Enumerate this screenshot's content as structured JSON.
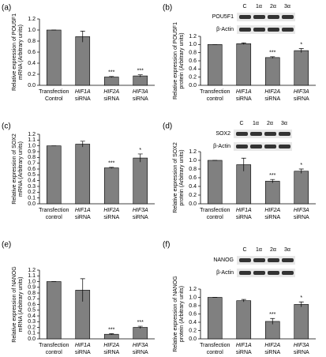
{
  "chart_data": [
    {
      "type": "bar",
      "label": "(a)",
      "y_label": [
        "Relative expression of POU5F1",
        "mRNA (Arbitrary units)"
      ],
      "categories": [
        [
          "Transfection",
          "Control"
        ],
        [
          "HIF1A",
          "siRNA"
        ],
        [
          "HIF2A",
          "siRNA"
        ],
        [
          "HIF3A",
          "siRNA"
        ]
      ],
      "values": [
        1.0,
        0.88,
        0.15,
        0.17
      ],
      "errors": [
        0,
        0.1,
        0.01,
        0.02
      ],
      "significance": [
        null,
        null,
        "***",
        "***"
      ],
      "color": "#808080",
      "ylim": [
        0,
        1.2
      ],
      "yticks": [
        {
          "value": 0,
          "label": "0.0"
        },
        0.2,
        0.4,
        0.6,
        0.8,
        {
          "value": 1,
          "label": "1.0"
        },
        1.2
      ]
    },
    {
      "type": "bar",
      "label": "(b)",
      "y_label": [
        "Relative expression of POU5F1",
        "protein (Arbitrary units)"
      ],
      "categories": [
        [
          "Transfection",
          "control"
        ],
        [
          "HIF1A",
          "siRNA"
        ],
        [
          "HIF2A",
          "siRNA"
        ],
        [
          "HIF3A",
          "siRNA"
        ]
      ],
      "values": [
        1.0,
        1.02,
        0.68,
        0.85
      ],
      "errors": [
        0,
        0.02,
        0.02,
        0.05
      ],
      "significance": [
        null,
        null,
        "***",
        "*"
      ],
      "color": "#808080",
      "ylim": [
        0,
        1.2
      ],
      "yticks": [
        {
          "value": 0,
          "label": "0.0"
        },
        0.2,
        0.4,
        0.6,
        0.8,
        {
          "value": 1,
          "label": "1.0"
        },
        1.2
      ],
      "blot": {
        "lanes": [
          "C",
          "1α",
          "2α",
          "3α"
        ],
        "bands": [
          "POU5F1",
          "β-Actin"
        ]
      }
    },
    {
      "type": "bar",
      "label": "(c)",
      "y_label": [
        "Relative expression of SOX2",
        "mRNA (Arbitrary units)"
      ],
      "categories": [
        [
          "Transfection",
          "control"
        ],
        [
          "HIF1A",
          "siRNA"
        ],
        [
          "HIF2A",
          "siRNA"
        ],
        [
          "HIF3A",
          "siRNA"
        ]
      ],
      "values": [
        1.0,
        1.03,
        0.62,
        0.79
      ],
      "errors": [
        0,
        0.05,
        0.01,
        0.07
      ],
      "significance": [
        null,
        null,
        "***",
        "*"
      ],
      "color": "#808080",
      "ylim": [
        0,
        1.2
      ],
      "yticks": [
        {
          "value": 0,
          "label": "0.0"
        },
        0.1,
        0.2,
        0.3,
        0.4,
        0.5,
        0.6,
        0.7,
        0.8,
        0.9,
        {
          "value": 1,
          "label": "1.0"
        },
        1.1,
        1.2
      ]
    },
    {
      "type": "bar",
      "label": "(d)",
      "y_label": [
        "Relative expression of SOX2",
        "protein (Arbitrary units)"
      ],
      "categories": [
        [
          "Transfection",
          "control"
        ],
        [
          "HIF1A",
          "siRNA"
        ],
        [
          "HIF2A",
          "siRNA"
        ],
        [
          "HIF3A",
          "siRNA"
        ]
      ],
      "values": [
        1.0,
        0.9,
        0.52,
        0.75
      ],
      "errors": [
        0,
        0.15,
        0.04,
        0.05
      ],
      "significance": [
        null,
        null,
        "***",
        "*"
      ],
      "color": "#808080",
      "ylim": [
        0,
        1.2
      ],
      "yticks": [
        {
          "value": 0,
          "label": "0.0"
        },
        0.2,
        0.4,
        0.6,
        0.8,
        {
          "value": 1,
          "label": "1.0"
        },
        1.2
      ],
      "blot": {
        "lanes": [
          "C",
          "1α",
          "2α",
          "3α"
        ],
        "bands": [
          "SOX2",
          "β-Actin"
        ]
      }
    },
    {
      "type": "bar",
      "label": "(e)",
      "y_label": [
        "Relative expression of NANOG",
        "mRNA (Arbitrary units)"
      ],
      "categories": [
        [
          "Transfection",
          "control"
        ],
        [
          "HIF1A",
          "siRNA"
        ],
        [
          "HIF2A",
          "siRNA"
        ],
        [
          "HIF3A",
          "siRNA"
        ]
      ],
      "values": [
        1.0,
        0.85,
        0.08,
        0.2
      ],
      "errors": [
        0,
        0.2,
        0.01,
        0.02
      ],
      "significance": [
        null,
        null,
        "***",
        "***"
      ],
      "color": "#808080",
      "ylim": [
        0,
        1.2
      ],
      "yticks": [
        {
          "value": 0,
          "label": "0.0"
        },
        0.1,
        0.2,
        0.3,
        0.4,
        0.5,
        0.6,
        0.7,
        0.8,
        0.9,
        {
          "value": 1,
          "label": "1.0"
        },
        1.1,
        1.2
      ]
    },
    {
      "type": "bar",
      "label": "(f)",
      "y_label": [
        "Relative expression of NANOG",
        "protein (Arbitrary units)"
      ],
      "categories": [
        [
          "Transfection",
          "control"
        ],
        [
          "HIF1A",
          "siRNA"
        ],
        [
          "HIF2A",
          "siRNA"
        ],
        [
          "HIF3A",
          "siRNA"
        ]
      ],
      "values": [
        1.0,
        0.92,
        0.42,
        0.83
      ],
      "errors": [
        0,
        0.03,
        0.07,
        0.06
      ],
      "significance": [
        null,
        null,
        "***",
        "*"
      ],
      "color": "#808080",
      "ylim": [
        0,
        1.2
      ],
      "yticks": [
        {
          "value": 0,
          "label": "0.0"
        },
        0.2,
        0.4,
        0.6,
        0.8,
        {
          "value": 1,
          "label": "1.0"
        },
        1.2
      ],
      "blot": {
        "lanes": [
          "C",
          "1α",
          "2α",
          "3α"
        ],
        "bands": [
          "NANOG",
          "β-Actin"
        ]
      }
    }
  ]
}
